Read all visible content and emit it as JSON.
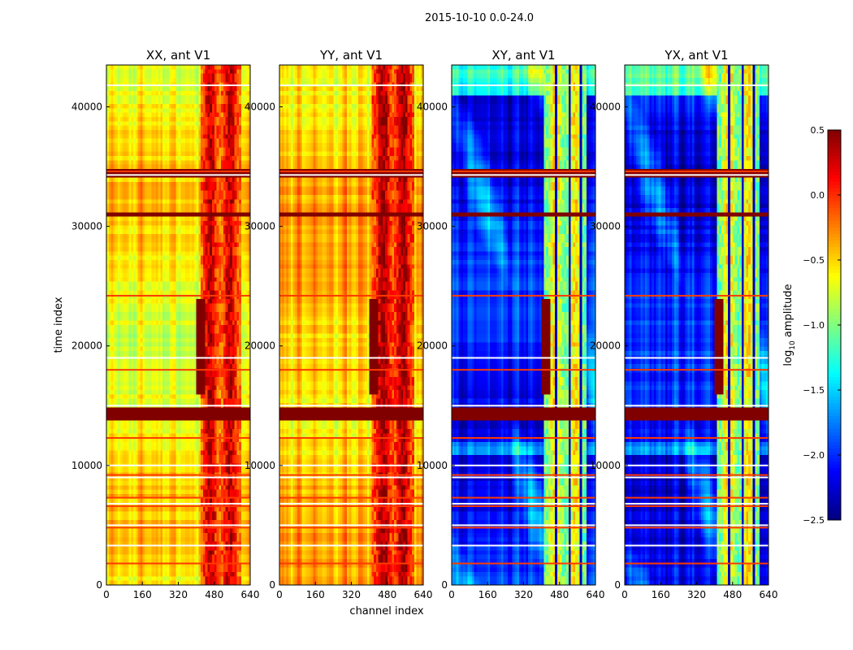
{
  "figure": {
    "suptitle": "2015-10-10 0.0-24.0",
    "xlabel": "channel index",
    "ylabel": "time index",
    "colorbar_label": "log10 amplitude",
    "colorbar_label_parts": {
      "base": "log",
      "sub": "10",
      "rest": " amplitude"
    }
  },
  "colormap": "jet",
  "chart_data": {
    "type": "heatmap",
    "title": "2015-10-10 0.0-24.0",
    "xlabel": "channel index",
    "ylabel": "time index",
    "xlim": [
      0,
      640
    ],
    "ylim": [
      0,
      43500
    ],
    "xticks": [
      0,
      160,
      320,
      480,
      640
    ],
    "yticks": [
      0,
      10000,
      20000,
      30000,
      40000
    ],
    "colorbar": {
      "label": "log10 amplitude",
      "vmin": -2.5,
      "vmax": 0.5,
      "ticks": [
        0.5,
        0.0,
        -0.5,
        -1.0,
        -1.5,
        -2.0,
        -2.5
      ],
      "tick_labels": [
        "0.5",
        "0.0",
        "−0.5",
        "−1.0",
        "−1.5",
        "−2.0",
        "−2.5"
      ]
    },
    "panels": [
      {
        "title": "XX, ant V1",
        "baseline": -0.6,
        "rfi_band": [
          420,
          600
        ],
        "rfi_level": 0.05,
        "show_ylabel": true,
        "show_xlabel": false
      },
      {
        "title": "YY, ant V1",
        "baseline": -0.45,
        "rfi_band": [
          410,
          600
        ],
        "rfi_level": 0.15,
        "show_ylabel": false,
        "show_xlabel": true
      },
      {
        "title": "XY, ant V1",
        "baseline": -2.1,
        "rfi_band": [
          410,
          600
        ],
        "rfi_level": -0.8,
        "show_ylabel": false,
        "show_xlabel": false
      },
      {
        "title": "YX, ant V1",
        "baseline": -2.1,
        "rfi_band": [
          410,
          600
        ],
        "rfi_level": -0.8,
        "show_ylabel": false,
        "show_xlabel": false
      }
    ],
    "flag_rows": [
      1800,
      3300,
      4800,
      5000,
      6600,
      6800,
      7300,
      9000,
      9200,
      10000,
      12300,
      15000,
      18000,
      19000,
      24200,
      34300,
      34600,
      41800
    ],
    "flag_band_rows": [
      [
        13700,
        15000
      ],
      [
        30900,
        31300
      ],
      [
        34200,
        34700
      ]
    ],
    "outlier_band": {
      "channels": [
        400,
        440
      ],
      "rows": [
        16000,
        24000
      ]
    }
  }
}
